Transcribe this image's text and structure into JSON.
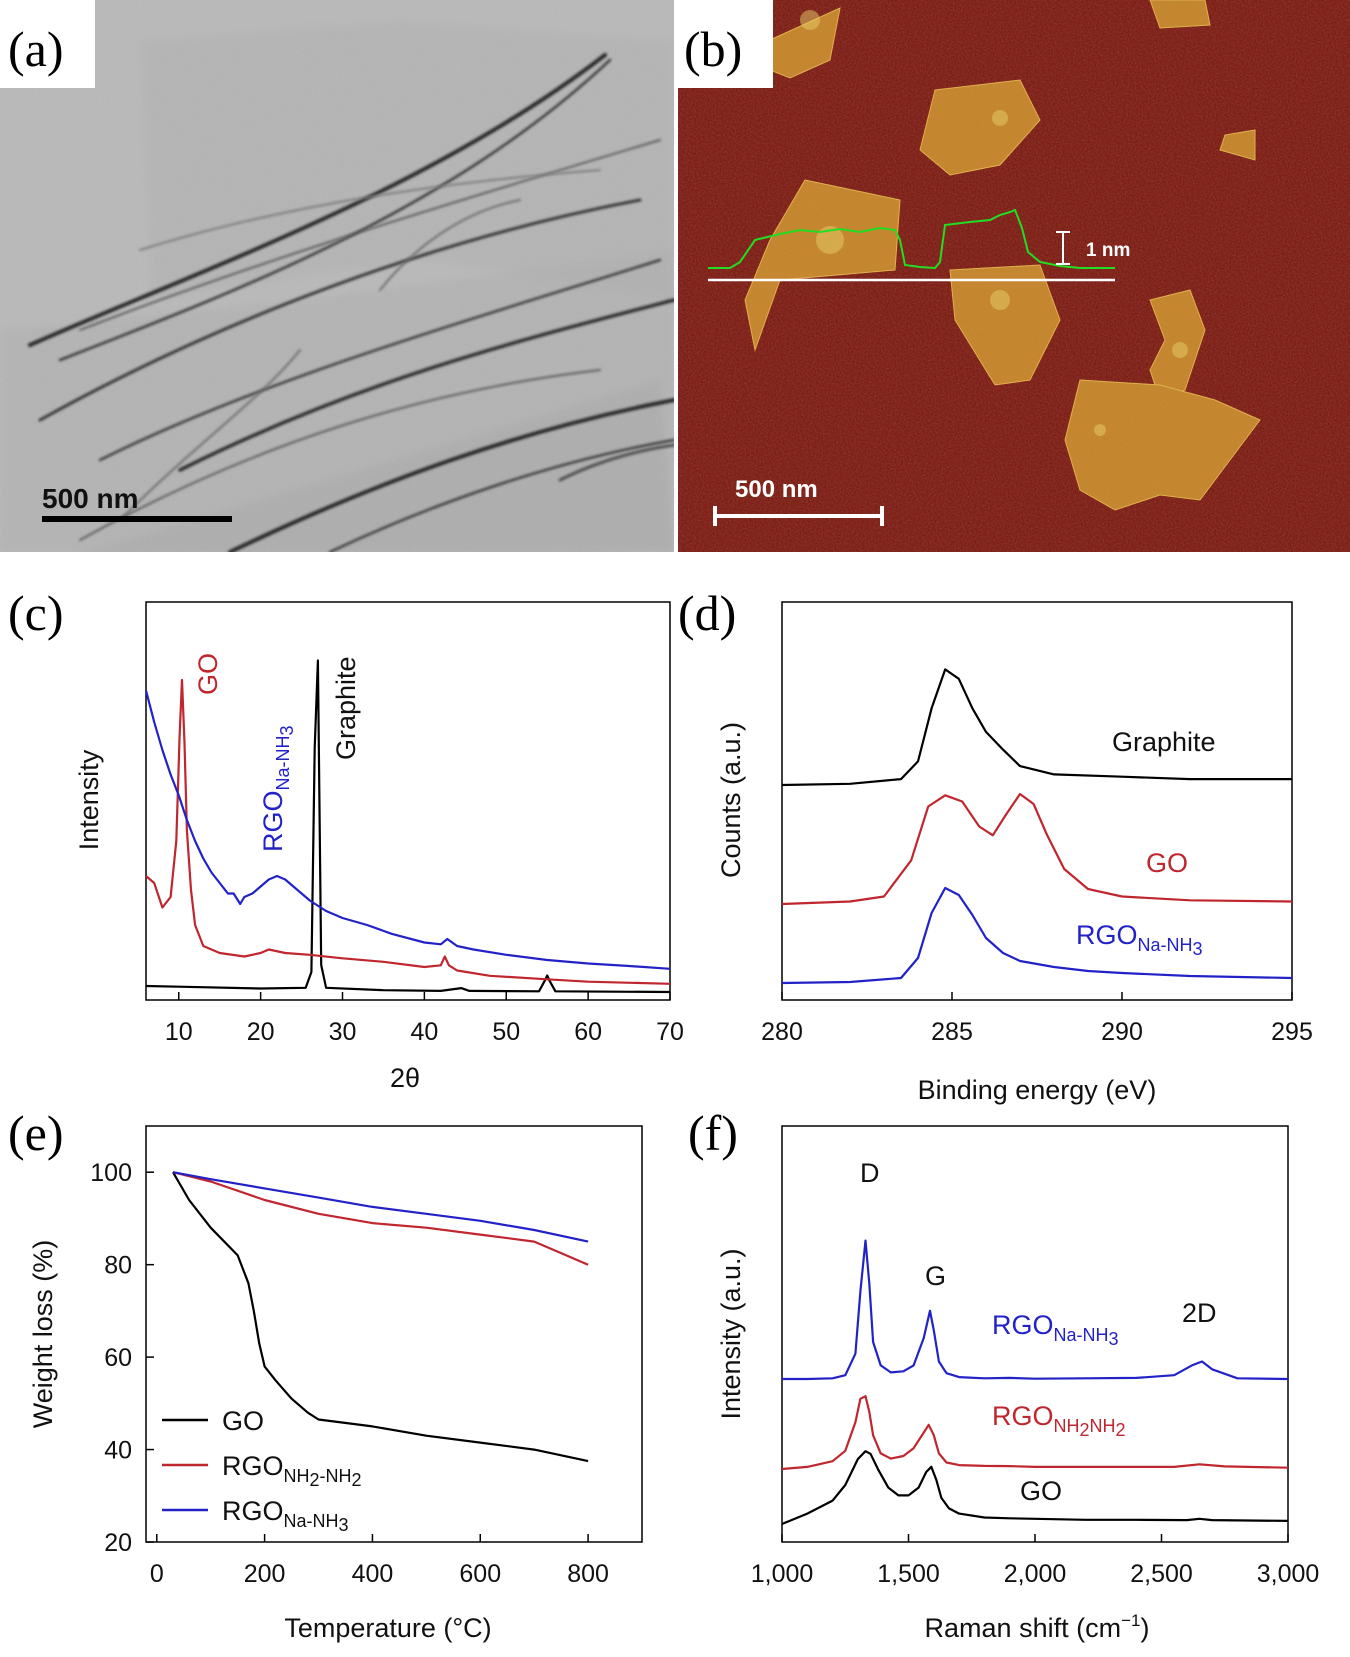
{
  "panels": {
    "a": {
      "letter": "(a)",
      "image": "TEM micrograph of thin folded graphene sheets",
      "scalebar": "500 nm"
    },
    "b": {
      "letter": "(b)",
      "image": "AFM height image of graphene flakes on substrate",
      "scalebar": "500 nm",
      "height_label": "1 nm"
    },
    "c": {
      "letter": "(c)"
    },
    "d": {
      "letter": "(d)"
    },
    "e": {
      "letter": "(e)"
    },
    "f": {
      "letter": "(f)"
    }
  },
  "colors": {
    "black_series": "#000000",
    "red_series": "#c0262e",
    "blue_series": "#2222c8",
    "afm_background": "#7a1208",
    "afm_flake": "#c98a2a",
    "afm_profile": "#22dd22"
  },
  "chart_data": [
    {
      "id": "c",
      "type": "line",
      "title": "",
      "xlabel": "2θ",
      "ylabel": "Intensity",
      "xlim": [
        6,
        70
      ],
      "xticks": [
        10,
        20,
        30,
        40,
        50,
        60,
        70
      ],
      "series": [
        {
          "name": "Graphite",
          "color": "#000000",
          "x": [
            6,
            10,
            20,
            25.5,
            26.2,
            26.6,
            27.0,
            27.4,
            28,
            35,
            42,
            44.5,
            45.5,
            54,
            54.7,
            55.0,
            55.3,
            56,
            70
          ],
          "y": [
            2,
            1.8,
            1.3,
            1.5,
            6,
            70,
            95,
            8,
            1.5,
            0.8,
            0.6,
            1.4,
            0.6,
            0.5,
            3.5,
            5,
            3.5,
            0.5,
            0.3
          ]
        },
        {
          "name": "GO",
          "color": "#c0262e",
          "x": [
            6,
            7,
            8,
            9,
            9.7,
            10.1,
            10.4,
            10.7,
            11.0,
            11.5,
            12,
            13,
            15,
            18,
            20,
            21,
            23,
            26,
            30,
            35,
            40,
            42,
            42.5,
            43,
            44,
            48,
            55,
            60,
            70
          ],
          "y": [
            32,
            30,
            23,
            26,
            42,
            72,
            88,
            70,
            45,
            28,
            18,
            12,
            10,
            9,
            10,
            11,
            10,
            9.5,
            8.5,
            7.5,
            6,
            6.5,
            9,
            6.5,
            5,
            3.5,
            2.5,
            1.8,
            1.2
          ]
        },
        {
          "name": "RGO_Na-NH3",
          "color": "#2222c8",
          "x": [
            6,
            7,
            8,
            9,
            10,
            11,
            12,
            13,
            14,
            15,
            16,
            16.7,
            17.5,
            18,
            19,
            20,
            21,
            22,
            23,
            24,
            26,
            28,
            30,
            33,
            36,
            40,
            42,
            42.8,
            44,
            46,
            50,
            55,
            60,
            65,
            70
          ],
          "y": [
            85,
            76,
            68,
            61,
            55,
            48,
            42,
            37,
            33,
            30,
            27,
            27,
            24,
            26,
            27,
            29,
            31,
            32,
            31,
            29,
            25,
            22,
            20,
            18,
            15.5,
            13,
            12.5,
            14,
            12,
            11,
            9.5,
            8,
            7,
            6.3,
            5.5
          ]
        }
      ],
      "labels": [
        {
          "text": "GO",
          "color": "#c0262e"
        },
        {
          "text": "RGO",
          "sub": "Na-NH",
          "sub2": "3",
          "color": "#2222c8"
        },
        {
          "text": "Graphite",
          "color": "#111111"
        }
      ]
    },
    {
      "id": "d",
      "type": "line",
      "title": "",
      "xlabel": "Binding energy (eV)",
      "ylabel": "Counts (a.u.)",
      "xlim": [
        280,
        295
      ],
      "xticks": [
        280,
        285,
        290,
        295
      ],
      "series": [
        {
          "name": "Graphite",
          "color": "#000000",
          "x": [
            280,
            282,
            283.5,
            284,
            284.4,
            284.8,
            285.2,
            285.6,
            286,
            286.5,
            287,
            288,
            290,
            292,
            295
          ],
          "y": [
            0,
            0.01,
            0.05,
            0.2,
            0.65,
            0.98,
            0.9,
            0.65,
            0.45,
            0.3,
            0.16,
            0.09,
            0.07,
            0.05,
            0.05
          ]
        },
        {
          "name": "GO",
          "color": "#c0262e",
          "x": [
            280,
            282,
            283,
            283.8,
            284.3,
            284.8,
            285.3,
            285.8,
            286.2,
            286.6,
            287.0,
            287.4,
            287.8,
            288.3,
            289,
            290,
            292,
            295
          ],
          "y": [
            0,
            0.02,
            0.06,
            0.35,
            0.78,
            0.87,
            0.82,
            0.62,
            0.55,
            0.72,
            0.88,
            0.8,
            0.55,
            0.28,
            0.12,
            0.06,
            0.03,
            0.02
          ]
        },
        {
          "name": "RGO_Na-NH3",
          "color": "#2222c8",
          "x": [
            280,
            282,
            283.5,
            284,
            284.4,
            284.8,
            285.2,
            285.6,
            286,
            286.5,
            287,
            288,
            289,
            290,
            292,
            295
          ],
          "y": [
            0,
            0.01,
            0.05,
            0.25,
            0.7,
            0.95,
            0.88,
            0.68,
            0.45,
            0.3,
            0.22,
            0.16,
            0.12,
            0.1,
            0.07,
            0.05
          ]
        }
      ],
      "labels": [
        {
          "text": "Graphite",
          "color": "#111111"
        },
        {
          "text": "GO",
          "color": "#c0262e"
        },
        {
          "text": "RGO",
          "sub": "Na-NH",
          "sub2": "3",
          "color": "#2222c8"
        }
      ]
    },
    {
      "id": "e",
      "type": "line",
      "title": "",
      "xlabel": "Temperature (°C)",
      "ylabel": "Weight loss (%)",
      "xlim": [
        -20,
        900
      ],
      "ylim": [
        20,
        110
      ],
      "xticks": [
        0,
        200,
        400,
        600,
        800
      ],
      "yticks": [
        20,
        40,
        60,
        80,
        100
      ],
      "series": [
        {
          "name": "GO",
          "color": "#000000",
          "x": [
            30,
            60,
            100,
            150,
            170,
            180,
            190,
            200,
            220,
            250,
            280,
            300,
            400,
            500,
            600,
            700,
            800
          ],
          "y": [
            100,
            94,
            88,
            82,
            76,
            70,
            63,
            58,
            55,
            51,
            48,
            46.5,
            45,
            43,
            41.5,
            40,
            37.5
          ]
        },
        {
          "name": "RGO_NH2-NH2",
          "color": "#c0262e",
          "x": [
            30,
            100,
            200,
            300,
            400,
            500,
            600,
            700,
            750,
            800
          ],
          "y": [
            100,
            98,
            94,
            91,
            89,
            88,
            86.5,
            85,
            82.5,
            80
          ]
        },
        {
          "name": "RGO_Na-NH3",
          "color": "#2222c8",
          "x": [
            30,
            100,
            200,
            300,
            400,
            500,
            600,
            700,
            800
          ],
          "y": [
            100,
            98.5,
            96.5,
            94.5,
            92.5,
            91,
            89.5,
            87.5,
            85
          ]
        }
      ],
      "legend": {
        "position": "bottom-left",
        "entries": [
          {
            "text": "GO",
            "color": "#000000"
          },
          {
            "text": "RGO",
            "sub": "NH",
            "sub_mid": "2",
            "sub_tail": "-NH",
            "sub_end": "2",
            "color": "#c0262e"
          },
          {
            "text": "RGO",
            "sub": "Na-NH",
            "sub2": "3",
            "color": "#2222c8"
          }
        ]
      }
    },
    {
      "id": "f",
      "type": "line",
      "title": "",
      "xlabel": "Raman shift (cm",
      "xlabel_sup": "−1",
      "xlabel_end": ")",
      "ylabel": "Intensity (a.u.)",
      "xlim": [
        1000,
        3000
      ],
      "xticks": [
        1000,
        1500,
        2000,
        2500,
        3000
      ],
      "xtick_labels": [
        "1,000",
        "1,500",
        "2,000",
        "2,500",
        "3,000"
      ],
      "series": [
        {
          "name": "RGO_Na-NH3",
          "color": "#2222c8",
          "x": [
            1000,
            1100,
            1200,
            1250,
            1290,
            1310,
            1330,
            1345,
            1360,
            1390,
            1430,
            1480,
            1520,
            1560,
            1585,
            1600,
            1620,
            1650,
            1700,
            1800,
            1900,
            2000,
            2200,
            2400,
            2550,
            2620,
            2660,
            2700,
            2800,
            3000
          ],
          "y": [
            0.5,
            0.5,
            0.7,
            1.5,
            7,
            23,
            36,
            25,
            10,
            4,
            2.2,
            2.5,
            4,
            11,
            18,
            13,
            5,
            2,
            1,
            0.7,
            0.8,
            0.6,
            0.7,
            0.8,
            1.5,
            4,
            5,
            3,
            0.7,
            0.5
          ]
        },
        {
          "name": "RGO_NH2NH2",
          "color": "#c0262e",
          "x": [
            1000,
            1100,
            1200,
            1250,
            1290,
            1310,
            1330,
            1345,
            1360,
            1390,
            1430,
            1480,
            1520,
            1560,
            1580,
            1600,
            1620,
            1650,
            1700,
            1800,
            1900,
            2000,
            2200,
            2400,
            2550,
            2650,
            2750,
            3000
          ],
          "y": [
            0,
            0.8,
            3,
            7,
            18,
            27,
            28,
            22,
            13,
            6,
            4,
            5,
            8,
            14,
            17,
            13,
            6,
            2.5,
            1.5,
            1.2,
            1.1,
            0.8,
            0.8,
            0.8,
            0.8,
            1.8,
            1,
            0.5
          ]
        },
        {
          "name": "GO",
          "color": "#000000",
          "x": [
            1000,
            1100,
            1200,
            1250,
            1300,
            1330,
            1350,
            1380,
            1420,
            1460,
            1500,
            1540,
            1570,
            1590,
            1610,
            1630,
            1660,
            1700,
            1800,
            1900,
            2000,
            2200,
            2400,
            2600,
            2650,
            2700,
            3000
          ],
          "y": [
            0,
            4,
            9,
            15,
            25,
            28,
            27,
            21,
            14,
            11,
            11,
            14,
            20,
            22,
            17,
            10,
            6,
            4,
            2.5,
            2.2,
            2,
            1.6,
            1.6,
            1.5,
            2,
            1.5,
            1.2
          ]
        }
      ],
      "peak_labels": [
        "D",
        "G",
        "2D"
      ],
      "labels": [
        {
          "text": "RGO",
          "sub": "Na-NH",
          "sub2": "3",
          "color": "#2222c8"
        },
        {
          "text": "RGO",
          "sub": "NH",
          "sub_mid": "2",
          "sub_tail": "NH",
          "sub_end": "2",
          "color": "#c0262e"
        },
        {
          "text": "GO",
          "color": "#111111"
        }
      ]
    }
  ]
}
